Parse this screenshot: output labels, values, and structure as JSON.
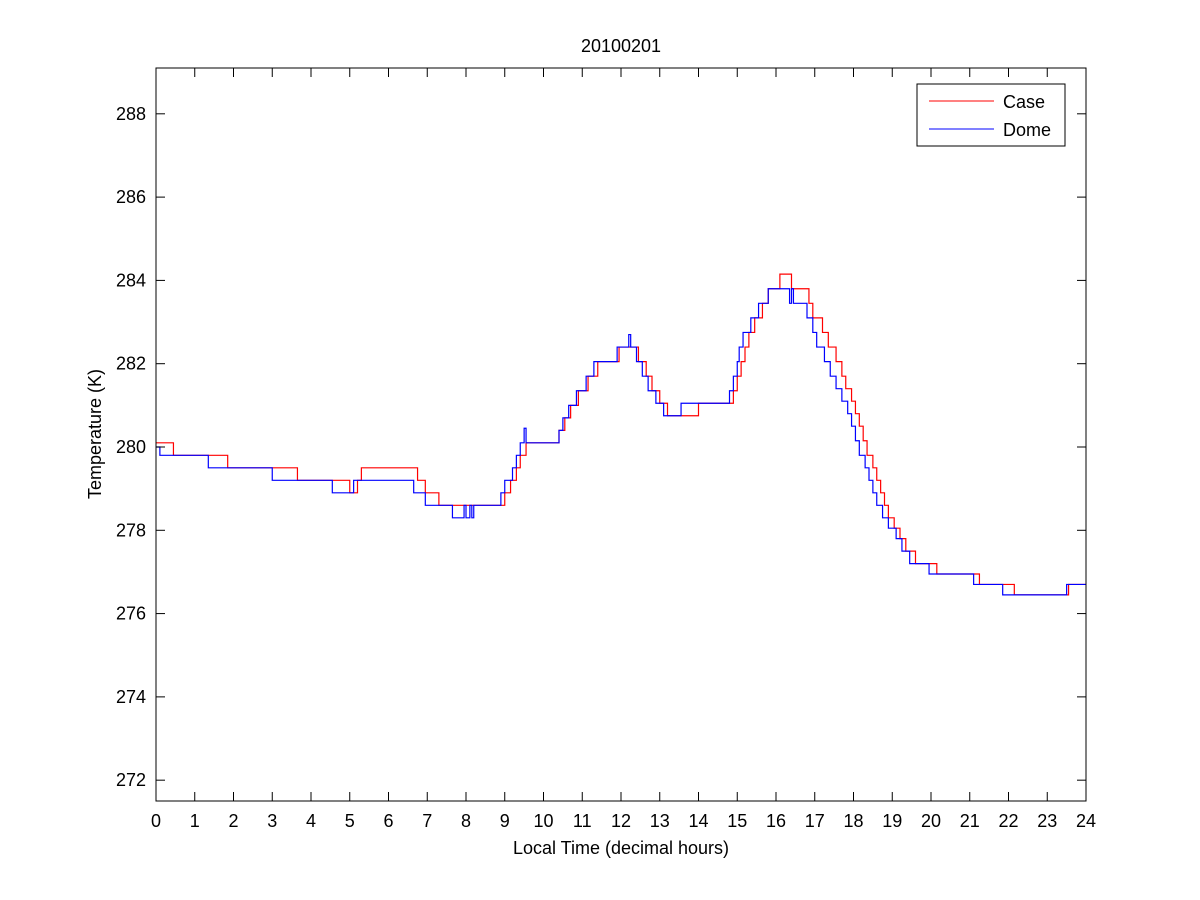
{
  "chart_data": {
    "type": "line",
    "title": "20100201",
    "xlabel": "Local Time (decimal hours)",
    "ylabel": "Temperature (K)",
    "xlim": [
      0,
      24
    ],
    "ylim": [
      271.5,
      289.1
    ],
    "xticks": [
      0,
      1,
      2,
      3,
      4,
      5,
      6,
      7,
      8,
      9,
      10,
      11,
      12,
      13,
      14,
      15,
      16,
      17,
      18,
      19,
      20,
      21,
      22,
      23,
      24
    ],
    "xtick_labels": [
      "0",
      "1",
      "2",
      "3",
      "4",
      "5",
      "6",
      "7",
      "8",
      "9",
      "10",
      "11",
      "12",
      "13",
      "14",
      "15",
      "16",
      "17",
      "18",
      "19",
      "20",
      "21",
      "22",
      "23",
      "24"
    ],
    "yticks": [
      272,
      274,
      276,
      278,
      280,
      282,
      284,
      286,
      288
    ],
    "ytick_labels": [
      "272",
      "274",
      "276",
      "278",
      "280",
      "282",
      "284",
      "286",
      "288"
    ],
    "grid": false,
    "legend_position": "top-right",
    "series": [
      {
        "name": "Case",
        "color": "#ff0000",
        "points": [
          [
            0.0,
            280.1
          ],
          [
            0.45,
            280.1
          ],
          [
            0.45,
            279.8
          ],
          [
            1.85,
            279.8
          ],
          [
            1.85,
            279.5
          ],
          [
            3.65,
            279.5
          ],
          [
            3.65,
            279.2
          ],
          [
            5.0,
            279.2
          ],
          [
            5.0,
            278.9
          ],
          [
            5.2,
            278.9
          ],
          [
            5.2,
            279.2
          ],
          [
            5.3,
            279.2
          ],
          [
            5.3,
            279.5
          ],
          [
            6.75,
            279.5
          ],
          [
            6.75,
            279.2
          ],
          [
            6.95,
            279.2
          ],
          [
            6.95,
            278.9
          ],
          [
            7.3,
            278.9
          ],
          [
            7.3,
            278.6
          ],
          [
            9.0,
            278.6
          ],
          [
            9.0,
            278.9
          ],
          [
            9.15,
            278.9
          ],
          [
            9.15,
            279.2
          ],
          [
            9.3,
            279.2
          ],
          [
            9.3,
            279.5
          ],
          [
            9.4,
            279.5
          ],
          [
            9.4,
            279.8
          ],
          [
            9.55,
            279.8
          ],
          [
            9.55,
            280.1
          ],
          [
            10.4,
            280.1
          ],
          [
            10.4,
            280.4
          ],
          [
            10.55,
            280.4
          ],
          [
            10.55,
            280.7
          ],
          [
            10.7,
            280.7
          ],
          [
            10.7,
            281.0
          ],
          [
            10.9,
            281.0
          ],
          [
            10.9,
            281.35
          ],
          [
            11.15,
            281.35
          ],
          [
            11.15,
            281.7
          ],
          [
            11.4,
            281.7
          ],
          [
            11.4,
            282.05
          ],
          [
            11.95,
            282.05
          ],
          [
            11.95,
            282.4
          ],
          [
            12.45,
            282.4
          ],
          [
            12.45,
            282.05
          ],
          [
            12.65,
            282.05
          ],
          [
            12.65,
            281.7
          ],
          [
            12.8,
            281.7
          ],
          [
            12.8,
            281.35
          ],
          [
            13.0,
            281.35
          ],
          [
            13.0,
            281.05
          ],
          [
            13.2,
            281.05
          ],
          [
            13.2,
            280.75
          ],
          [
            14.0,
            280.75
          ],
          [
            14.0,
            281.05
          ],
          [
            14.9,
            281.05
          ],
          [
            14.9,
            281.35
          ],
          [
            15.0,
            281.35
          ],
          [
            15.0,
            281.7
          ],
          [
            15.1,
            281.7
          ],
          [
            15.1,
            282.05
          ],
          [
            15.2,
            282.05
          ],
          [
            15.2,
            282.4
          ],
          [
            15.3,
            282.4
          ],
          [
            15.3,
            282.75
          ],
          [
            15.45,
            282.75
          ],
          [
            15.45,
            283.1
          ],
          [
            15.65,
            283.1
          ],
          [
            15.65,
            283.45
          ],
          [
            15.8,
            283.45
          ],
          [
            15.8,
            283.8
          ],
          [
            16.1,
            283.8
          ],
          [
            16.1,
            284.15
          ],
          [
            16.4,
            284.15
          ],
          [
            16.4,
            283.8
          ],
          [
            16.85,
            283.8
          ],
          [
            16.85,
            283.45
          ],
          [
            16.95,
            283.45
          ],
          [
            16.95,
            283.1
          ],
          [
            17.2,
            283.1
          ],
          [
            17.2,
            282.75
          ],
          [
            17.35,
            282.75
          ],
          [
            17.35,
            282.4
          ],
          [
            17.55,
            282.4
          ],
          [
            17.55,
            282.05
          ],
          [
            17.7,
            282.05
          ],
          [
            17.7,
            281.7
          ],
          [
            17.8,
            281.7
          ],
          [
            17.8,
            281.4
          ],
          [
            17.95,
            281.4
          ],
          [
            17.95,
            281.1
          ],
          [
            18.05,
            281.1
          ],
          [
            18.05,
            280.8
          ],
          [
            18.15,
            280.8
          ],
          [
            18.15,
            280.5
          ],
          [
            18.25,
            280.5
          ],
          [
            18.25,
            280.15
          ],
          [
            18.35,
            280.15
          ],
          [
            18.35,
            279.8
          ],
          [
            18.5,
            279.8
          ],
          [
            18.5,
            279.5
          ],
          [
            18.6,
            279.5
          ],
          [
            18.6,
            279.2
          ],
          [
            18.7,
            279.2
          ],
          [
            18.7,
            278.9
          ],
          [
            18.8,
            278.9
          ],
          [
            18.8,
            278.6
          ],
          [
            18.9,
            278.6
          ],
          [
            18.9,
            278.3
          ],
          [
            19.05,
            278.3
          ],
          [
            19.05,
            278.05
          ],
          [
            19.2,
            278.05
          ],
          [
            19.2,
            277.8
          ],
          [
            19.35,
            277.8
          ],
          [
            19.35,
            277.5
          ],
          [
            19.6,
            277.5
          ],
          [
            19.6,
            277.2
          ],
          [
            20.15,
            277.2
          ],
          [
            20.15,
            276.95
          ],
          [
            21.25,
            276.95
          ],
          [
            21.25,
            276.7
          ],
          [
            22.15,
            276.7
          ],
          [
            22.15,
            276.45
          ],
          [
            23.55,
            276.45
          ],
          [
            23.55,
            276.7
          ],
          [
            24.0,
            276.7
          ]
        ]
      },
      {
        "name": "Dome",
        "color": "#0000ff",
        "points": [
          [
            0.0,
            280.0
          ],
          [
            0.1,
            280.0
          ],
          [
            0.1,
            279.8
          ],
          [
            1.35,
            279.8
          ],
          [
            1.35,
            279.5
          ],
          [
            3.0,
            279.5
          ],
          [
            3.0,
            279.2
          ],
          [
            4.55,
            279.2
          ],
          [
            4.55,
            278.9
          ],
          [
            5.1,
            278.9
          ],
          [
            5.1,
            279.2
          ],
          [
            6.65,
            279.2
          ],
          [
            6.65,
            278.9
          ],
          [
            6.95,
            278.9
          ],
          [
            6.95,
            278.6
          ],
          [
            7.65,
            278.6
          ],
          [
            7.65,
            278.3
          ],
          [
            7.95,
            278.3
          ],
          [
            7.95,
            278.6
          ],
          [
            8.0,
            278.6
          ],
          [
            8.0,
            278.3
          ],
          [
            8.1,
            278.3
          ],
          [
            8.1,
            278.6
          ],
          [
            8.15,
            278.6
          ],
          [
            8.15,
            278.3
          ],
          [
            8.2,
            278.3
          ],
          [
            8.2,
            278.6
          ],
          [
            8.9,
            278.6
          ],
          [
            8.9,
            278.9
          ],
          [
            9.0,
            278.9
          ],
          [
            9.0,
            279.2
          ],
          [
            9.2,
            279.2
          ],
          [
            9.2,
            279.5
          ],
          [
            9.3,
            279.5
          ],
          [
            9.3,
            279.8
          ],
          [
            9.4,
            279.8
          ],
          [
            9.4,
            280.1
          ],
          [
            9.5,
            280.1
          ],
          [
            9.5,
            280.45
          ],
          [
            9.55,
            280.45
          ],
          [
            9.55,
            280.1
          ],
          [
            10.4,
            280.1
          ],
          [
            10.4,
            280.4
          ],
          [
            10.5,
            280.4
          ],
          [
            10.5,
            280.7
          ],
          [
            10.65,
            280.7
          ],
          [
            10.65,
            281.0
          ],
          [
            10.85,
            281.0
          ],
          [
            10.85,
            281.35
          ],
          [
            11.1,
            281.35
          ],
          [
            11.1,
            281.7
          ],
          [
            11.3,
            281.7
          ],
          [
            11.3,
            282.05
          ],
          [
            11.9,
            282.05
          ],
          [
            11.9,
            282.4
          ],
          [
            12.2,
            282.4
          ],
          [
            12.2,
            282.7
          ],
          [
            12.25,
            282.7
          ],
          [
            12.25,
            282.4
          ],
          [
            12.4,
            282.4
          ],
          [
            12.4,
            282.05
          ],
          [
            12.55,
            282.05
          ],
          [
            12.55,
            281.7
          ],
          [
            12.7,
            281.7
          ],
          [
            12.7,
            281.35
          ],
          [
            12.9,
            281.35
          ],
          [
            12.9,
            281.05
          ],
          [
            13.1,
            281.05
          ],
          [
            13.1,
            280.75
          ],
          [
            13.55,
            280.75
          ],
          [
            13.55,
            281.05
          ],
          [
            14.8,
            281.05
          ],
          [
            14.8,
            281.35
          ],
          [
            14.9,
            281.35
          ],
          [
            14.9,
            281.7
          ],
          [
            15.0,
            281.7
          ],
          [
            15.0,
            282.05
          ],
          [
            15.05,
            282.05
          ],
          [
            15.05,
            282.4
          ],
          [
            15.15,
            282.4
          ],
          [
            15.15,
            282.75
          ],
          [
            15.35,
            282.75
          ],
          [
            15.35,
            283.1
          ],
          [
            15.55,
            283.1
          ],
          [
            15.55,
            283.45
          ],
          [
            15.8,
            283.45
          ],
          [
            15.8,
            283.8
          ],
          [
            16.35,
            283.8
          ],
          [
            16.35,
            283.45
          ],
          [
            16.4,
            283.45
          ],
          [
            16.4,
            283.8
          ],
          [
            16.45,
            283.8
          ],
          [
            16.45,
            283.45
          ],
          [
            16.8,
            283.45
          ],
          [
            16.8,
            283.1
          ],
          [
            16.95,
            283.1
          ],
          [
            16.95,
            282.75
          ],
          [
            17.05,
            282.75
          ],
          [
            17.05,
            282.4
          ],
          [
            17.25,
            282.4
          ],
          [
            17.25,
            282.05
          ],
          [
            17.4,
            282.05
          ],
          [
            17.4,
            281.7
          ],
          [
            17.55,
            281.7
          ],
          [
            17.55,
            281.4
          ],
          [
            17.7,
            281.4
          ],
          [
            17.7,
            281.1
          ],
          [
            17.85,
            281.1
          ],
          [
            17.85,
            280.8
          ],
          [
            17.95,
            280.8
          ],
          [
            17.95,
            280.5
          ],
          [
            18.05,
            280.5
          ],
          [
            18.05,
            280.15
          ],
          [
            18.15,
            280.15
          ],
          [
            18.15,
            279.8
          ],
          [
            18.3,
            279.8
          ],
          [
            18.3,
            279.5
          ],
          [
            18.4,
            279.5
          ],
          [
            18.4,
            279.2
          ],
          [
            18.5,
            279.2
          ],
          [
            18.5,
            278.9
          ],
          [
            18.6,
            278.9
          ],
          [
            18.6,
            278.6
          ],
          [
            18.75,
            278.6
          ],
          [
            18.75,
            278.3
          ],
          [
            18.9,
            278.3
          ],
          [
            18.9,
            278.05
          ],
          [
            19.1,
            278.05
          ],
          [
            19.1,
            277.8
          ],
          [
            19.25,
            277.8
          ],
          [
            19.25,
            277.5
          ],
          [
            19.45,
            277.5
          ],
          [
            19.45,
            277.2
          ],
          [
            19.95,
            277.2
          ],
          [
            19.95,
            276.95
          ],
          [
            21.1,
            276.95
          ],
          [
            21.1,
            276.7
          ],
          [
            21.85,
            276.7
          ],
          [
            21.85,
            276.45
          ],
          [
            23.5,
            276.45
          ],
          [
            23.5,
            276.7
          ],
          [
            24.0,
            276.7
          ]
        ]
      }
    ]
  }
}
